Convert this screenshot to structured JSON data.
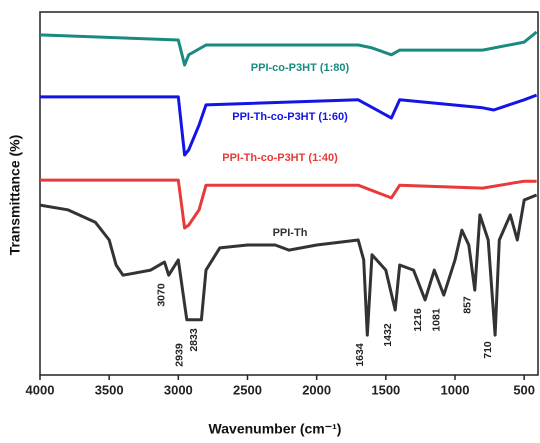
{
  "chart_data": {
    "type": "line",
    "x_label": "Wavenumber (cm⁻¹)",
    "y_label": "Transmittance (%)",
    "xlim": [
      4000,
      400
    ],
    "ylim": [
      0,
      100
    ],
    "xticks": [
      4000,
      3500,
      3000,
      2500,
      2000,
      1500,
      1000,
      500
    ],
    "series": [
      {
        "name": "PPI-co-P3HT (1:80)",
        "color": "#1a8a80",
        "x": [
          4000,
          3000,
          2955,
          2925,
          2800,
          1700,
          1600,
          1460,
          1400,
          800,
          500,
          410
        ],
        "values": [
          93.7,
          92.3,
          85.4,
          88.2,
          90.9,
          90.9,
          90.1,
          88.2,
          89.5,
          89.5,
          91.7,
          94.5
        ]
      },
      {
        "name": "PPI-Th-co-P3HT (1:60)",
        "color": "#1414e6",
        "x": [
          4000,
          3000,
          2955,
          2925,
          2850,
          2800,
          1700,
          1460,
          1400,
          800,
          720,
          500,
          410
        ],
        "values": [
          76.6,
          76.6,
          60.6,
          62.0,
          68.9,
          74.4,
          75.8,
          70.8,
          75.8,
          73.6,
          73.0,
          75.8,
          77.1
        ]
      },
      {
        "name": "PPI-Th-co-P3HT (1:40)",
        "color": "#e83a3a",
        "x": [
          4000,
          3000,
          2955,
          2925,
          2850,
          2800,
          1700,
          1460,
          1400,
          800,
          500,
          410
        ],
        "values": [
          53.7,
          53.7,
          40.5,
          41.3,
          45.5,
          52.3,
          52.3,
          48.8,
          52.3,
          51.5,
          53.4,
          53.4
        ]
      },
      {
        "name": "PPI-Th",
        "color": "#333333",
        "x": [
          4000,
          3800,
          3600,
          3500,
          3450,
          3400,
          3200,
          3100,
          3070,
          3000,
          2939,
          2833,
          2800,
          2700,
          2500,
          2300,
          2200,
          2000,
          1700,
          1660,
          1634,
          1600,
          1500,
          1432,
          1400,
          1300,
          1216,
          1150,
          1081,
          1000,
          950,
          900,
          857,
          820,
          760,
          710,
          680,
          600,
          550,
          500,
          410
        ],
        "values": [
          46.8,
          45.5,
          42.1,
          37.2,
          30.3,
          27.5,
          28.9,
          31.1,
          27.5,
          31.7,
          15.2,
          15.2,
          28.9,
          35.0,
          35.8,
          35.8,
          34.4,
          35.8,
          37.2,
          31.7,
          11.0,
          33.1,
          28.9,
          17.9,
          30.3,
          28.9,
          20.7,
          28.9,
          22.0,
          31.7,
          39.9,
          35.8,
          23.4,
          44.1,
          37.2,
          11.0,
          37.2,
          44.1,
          37.2,
          48.2,
          49.6
        ]
      }
    ],
    "peak_labels": [
      3070,
      2939,
      2833,
      1634,
      1432,
      1216,
      1081,
      857,
      710
    ]
  }
}
